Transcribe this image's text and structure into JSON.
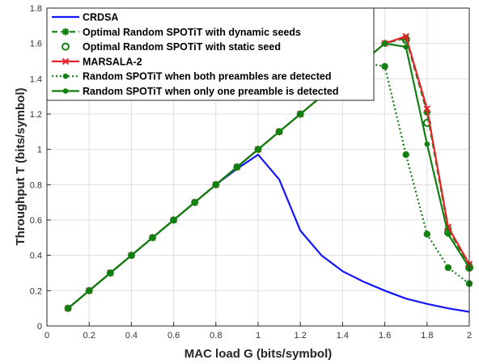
{
  "chart_data": {
    "type": "line",
    "xlabel": "MAC load G (bits/symbol)",
    "ylabel": "Throughput T (bits/symbol)",
    "xlim": [
      0,
      2
    ],
    "ylim": [
      0,
      1.8
    ],
    "xticks": [
      0,
      0.2,
      0.4,
      0.6,
      0.8,
      1,
      1.2,
      1.4,
      1.6,
      1.8,
      2
    ],
    "yticks": [
      0,
      0.2,
      0.4,
      0.6,
      0.8,
      1,
      1.2,
      1.4,
      1.6,
      1.8
    ],
    "grid": true,
    "legend_position": "top-left",
    "series": [
      {
        "name": "CRDSA",
        "color": "#1515ff",
        "style": "solid",
        "marker": "none",
        "x": [
          0.1,
          0.2,
          0.3,
          0.4,
          0.5,
          0.6,
          0.7,
          0.8,
          0.9,
          1.0,
          1.1,
          1.2,
          1.3,
          1.4,
          1.5,
          1.6,
          1.7,
          1.8,
          1.9,
          2.0
        ],
        "y": [
          0.1,
          0.2,
          0.3,
          0.4,
          0.5,
          0.6,
          0.7,
          0.8,
          0.89,
          0.97,
          0.83,
          0.54,
          0.4,
          0.31,
          0.25,
          0.2,
          0.155,
          0.125,
          0.1,
          0.08
        ]
      },
      {
        "name": "Optimal Random SPOTiT with dynamic seeds",
        "color": "#118011",
        "style": "dashed",
        "marker": "asterisk",
        "x": [
          0.1,
          0.2,
          0.3,
          0.4,
          0.5,
          0.6,
          0.7,
          0.8,
          0.9,
          1.0,
          1.1,
          1.2,
          1.3,
          1.4,
          1.5,
          1.6,
          1.7,
          1.8,
          1.9,
          2.0
        ],
        "y": [
          0.1,
          0.2,
          0.3,
          0.4,
          0.5,
          0.6,
          0.7,
          0.8,
          0.9,
          1.0,
          1.1,
          1.2,
          1.3,
          1.4,
          1.5,
          1.6,
          1.63,
          1.21,
          0.55,
          0.34
        ]
      },
      {
        "name": "Optimal Random SPOTiT with static seed",
        "color": "#118011",
        "style": "none",
        "marker": "circle",
        "x": [
          1.7,
          1.8,
          1.9,
          2.0
        ],
        "y": [
          1.62,
          1.15,
          0.53,
          0.33
        ]
      },
      {
        "name": "MARSALA-2",
        "color": "#e8212a",
        "style": "solid",
        "marker": "cross",
        "x": [
          0.1,
          0.2,
          0.3,
          0.4,
          0.5,
          0.6,
          0.7,
          0.8,
          0.9,
          1.0,
          1.1,
          1.2,
          1.3,
          1.4,
          1.5,
          1.6,
          1.7,
          1.8,
          1.9,
          2.0
        ],
        "y": [
          0.1,
          0.2,
          0.3,
          0.4,
          0.5,
          0.6,
          0.7,
          0.8,
          0.9,
          1.0,
          1.1,
          1.2,
          1.3,
          1.4,
          1.5,
          1.6,
          1.64,
          1.23,
          0.56,
          0.35
        ]
      },
      {
        "name": "Random SPOTiT when both preambles are detected",
        "color": "#118011",
        "style": "dotted",
        "marker": "dot",
        "x": [
          0.1,
          0.2,
          0.3,
          0.4,
          0.5,
          0.6,
          0.7,
          0.8,
          0.9,
          1.0,
          1.1,
          1.2,
          1.3,
          1.4,
          1.5,
          1.6,
          1.7,
          1.8,
          1.9,
          2.0
        ],
        "y": [
          0.1,
          0.2,
          0.3,
          0.4,
          0.5,
          0.6,
          0.7,
          0.8,
          0.9,
          1.0,
          1.1,
          1.2,
          1.3,
          1.4,
          1.49,
          1.47,
          0.97,
          0.52,
          0.33,
          0.24
        ]
      },
      {
        "name": "Random SPOTiT when only one preamble is detected",
        "color": "#118011",
        "style": "solid",
        "marker": "dot",
        "x": [
          0.1,
          0.2,
          0.3,
          0.4,
          0.5,
          0.6,
          0.7,
          0.8,
          0.9,
          1.0,
          1.1,
          1.2,
          1.3,
          1.4,
          1.5,
          1.6,
          1.7,
          1.8,
          1.9,
          2.0
        ],
        "y": [
          0.1,
          0.2,
          0.3,
          0.4,
          0.5,
          0.6,
          0.7,
          0.8,
          0.9,
          1.0,
          1.1,
          1.2,
          1.3,
          1.4,
          1.5,
          1.6,
          1.58,
          1.03,
          0.52,
          0.33
        ]
      }
    ]
  }
}
